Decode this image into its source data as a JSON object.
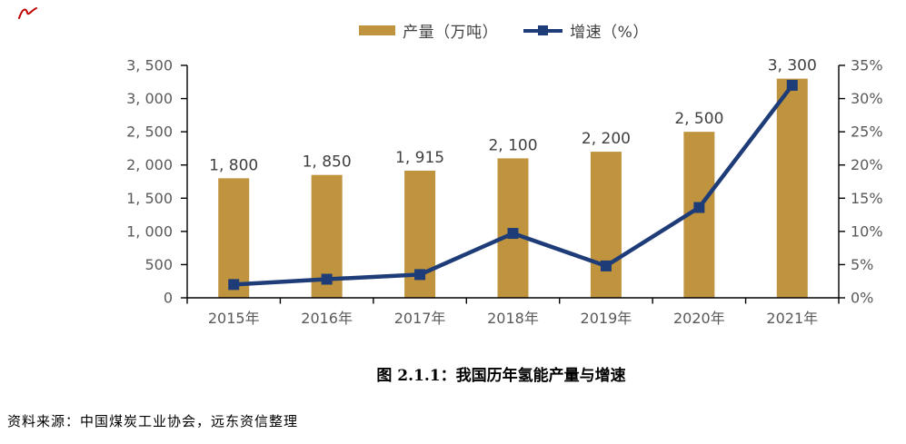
{
  "legend": {
    "items": [
      {
        "label": "产量（万吨）",
        "swatch": "bar",
        "color": "#C0943F"
      },
      {
        "label": "增速（%）",
        "swatch": "line-square",
        "color": "#1E3C78"
      }
    ]
  },
  "chart_data": {
    "type": "bar+line",
    "title": "图 2.1.1：我国历年氢能产量与增速",
    "categories": [
      "2015年",
      "2016年",
      "2017年",
      "2018年",
      "2019年",
      "2020年",
      "2021年"
    ],
    "series": [
      {
        "name": "产量（万吨）",
        "type": "bar",
        "axis": "left",
        "color": "#C0943F",
        "values": [
          1800,
          1850,
          1915,
          2100,
          2200,
          2500,
          3300
        ],
        "value_labels": [
          "1, 800",
          "1, 850",
          "1, 915",
          "2, 100",
          "2, 200",
          "2, 500",
          "3, 300"
        ]
      },
      {
        "name": "增速（%）",
        "type": "line",
        "axis": "right",
        "color": "#1E3C78",
        "marker": "square",
        "values": [
          2.0,
          2.8,
          3.5,
          9.7,
          4.8,
          13.6,
          32.0
        ]
      }
    ],
    "left_axis": {
      "min": 0,
      "max": 3500,
      "step": 500,
      "tick_labels": [
        "0",
        "500",
        "1, 000",
        "1, 500",
        "2, 000",
        "2, 500",
        "3, 000",
        "3, 500"
      ]
    },
    "right_axis": {
      "min": 0,
      "max": 35,
      "step": 5,
      "tick_labels": [
        "0%",
        "5%",
        "10%",
        "15%",
        "20%",
        "25%",
        "30%",
        "35%"
      ]
    },
    "grid": false,
    "legend_position": "top-center"
  },
  "source": {
    "text": "资料来源：中国煤炭工业协会，远东资信整理"
  },
  "colors": {
    "bar": "#C0943F",
    "line": "#1E3C78",
    "axis": "#000000",
    "tick_label": "#595959",
    "value_label": "#404040",
    "red_mark": "#C00000"
  }
}
